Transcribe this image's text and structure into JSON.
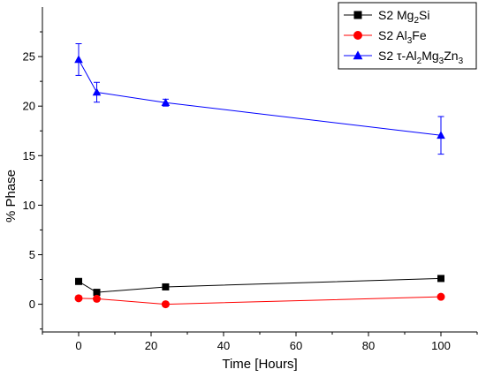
{
  "chart_data": {
    "type": "line",
    "xlabel": "Time [Hours]",
    "ylabel": "% Phase",
    "xlim": [
      -10,
      110
    ],
    "ylim": [
      -2.8,
      30
    ],
    "xticks": [
      0,
      20,
      40,
      60,
      80,
      100
    ],
    "yticks": [
      0,
      5,
      10,
      15,
      20,
      25
    ],
    "legend_position": "top-right",
    "grid": false,
    "series": [
      {
        "name": "S2 Mg2Si",
        "name_parts": [
          {
            "t": "S2 Mg"
          },
          {
            "t": "2",
            "sub": true
          },
          {
            "t": "Si"
          }
        ],
        "color": "#000000",
        "marker": "square",
        "x": [
          0,
          5,
          24,
          100
        ],
        "y": [
          2.3,
          1.2,
          1.75,
          2.6
        ]
      },
      {
        "name": "S2 Al3Fe",
        "name_parts": [
          {
            "t": "S2 Al"
          },
          {
            "t": "3",
            "sub": true
          },
          {
            "t": "Fe"
          }
        ],
        "color": "#ff0000",
        "marker": "circle",
        "x": [
          0,
          5,
          24,
          100
        ],
        "y": [
          0.6,
          0.55,
          0.0,
          0.75
        ]
      },
      {
        "name": "S2 τ-Al2Mg3Zn3",
        "name_parts": [
          {
            "t": "S2 τ-Al"
          },
          {
            "t": "2",
            "sub": true
          },
          {
            "t": "Mg"
          },
          {
            "t": "3",
            "sub": true
          },
          {
            "t": "Zn"
          },
          {
            "t": "3",
            "sub": true
          }
        ],
        "color": "#0000ff",
        "marker": "triangle",
        "x": [
          0,
          5,
          24,
          100
        ],
        "y": [
          24.7,
          21.4,
          20.35,
          17.05
        ],
        "error": [
          1.6,
          1.0,
          0.35,
          1.9
        ]
      }
    ]
  }
}
